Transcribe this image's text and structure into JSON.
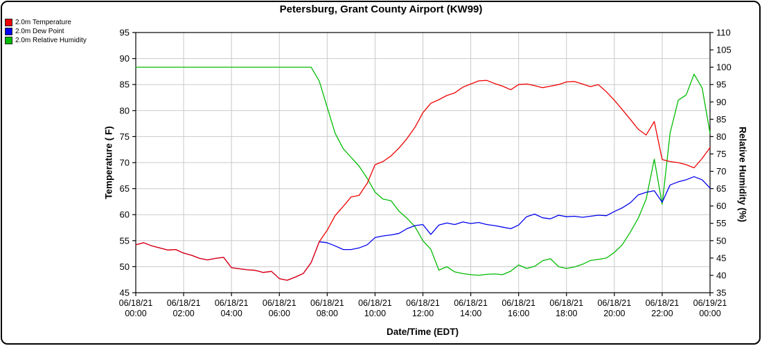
{
  "title": "Petersburg, Grant County Airport (KW99)",
  "legend": {
    "items": [
      {
        "label": "2.0m Temperature",
        "color": "#ee0000"
      },
      {
        "label": "2.0m Dew Point",
        "color": "#0000ee"
      },
      {
        "label": "2.0m Relative Humidity",
        "color": "#00bb00"
      }
    ]
  },
  "chart_data": {
    "type": "line",
    "title": "Petersburg, Grant County Airport (KW99)",
    "xlabel": "Date/Time (EDT)",
    "ylabel_left": "Temperature ( F)",
    "ylabel_right": "Relative Humidity (%)",
    "xlim_hours": [
      0,
      24
    ],
    "ylim_left": [
      45,
      95
    ],
    "ylim_right": [
      35,
      110
    ],
    "grid": true,
    "grid_color": "#c9c9c9",
    "legend_position": "top-left",
    "yticks_left": [
      45,
      50,
      55,
      60,
      65,
      70,
      75,
      80,
      85,
      90,
      95
    ],
    "yticks_right": [
      35,
      40,
      45,
      50,
      55,
      60,
      65,
      70,
      75,
      80,
      85,
      90,
      95,
      100,
      105,
      110
    ],
    "x_ticks": [
      {
        "hour": 0,
        "date": "06/18/21",
        "time": "00:00"
      },
      {
        "hour": 2,
        "date": "06/18/21",
        "time": "02:00"
      },
      {
        "hour": 4,
        "date": "06/18/21",
        "time": "04:00"
      },
      {
        "hour": 6,
        "date": "06/18/21",
        "time": "06:00"
      },
      {
        "hour": 8,
        "date": "06/18/21",
        "time": "08:00"
      },
      {
        "hour": 10,
        "date": "06/18/21",
        "time": "10:00"
      },
      {
        "hour": 12,
        "date": "06/18/21",
        "time": "12:00"
      },
      {
        "hour": 14,
        "date": "06/18/21",
        "time": "14:00"
      },
      {
        "hour": 16,
        "date": "06/18/21",
        "time": "16:00"
      },
      {
        "hour": 18,
        "date": "06/18/21",
        "time": "18:00"
      },
      {
        "hour": 20,
        "date": "06/18/21",
        "time": "20:00"
      },
      {
        "hour": 22,
        "date": "06/18/21",
        "time": "22:00"
      },
      {
        "hour": 24,
        "date": "06/19/21",
        "time": "00:00"
      }
    ],
    "x_hours": [
      0,
      0.33,
      0.67,
      1,
      1.33,
      1.67,
      2,
      2.33,
      2.67,
      3,
      3.33,
      3.67,
      4,
      4.33,
      4.67,
      5,
      5.33,
      5.67,
      6,
      6.33,
      6.67,
      7,
      7.33,
      7.67,
      8,
      8.33,
      8.67,
      9,
      9.33,
      9.67,
      10,
      10.33,
      10.67,
      11,
      11.33,
      11.67,
      12,
      12.33,
      12.67,
      13,
      13.33,
      13.67,
      14,
      14.33,
      14.67,
      15,
      15.33,
      15.67,
      16,
      16.33,
      16.67,
      17,
      17.33,
      17.67,
      18,
      18.33,
      18.67,
      19,
      19.33,
      19.67,
      20,
      20.33,
      20.67,
      21,
      21.33,
      21.67,
      22,
      22.33,
      22.67,
      23,
      23.33,
      23.67,
      24
    ],
    "series": [
      {
        "name": "2.0m Temperature",
        "axis": "left",
        "color": "#ee0000",
        "values": [
          54.2,
          54.6,
          54.0,
          53.6,
          53.2,
          53.3,
          52.6,
          52.2,
          51.6,
          51.3,
          51.6,
          51.8,
          49.8,
          49.6,
          49.4,
          49.3,
          48.9,
          49.1,
          47.7,
          47.4,
          48.0,
          48.7,
          50.8,
          54.8,
          57.0,
          59.8,
          61.6,
          63.4,
          63.7,
          66.0,
          69.6,
          70.2,
          71.3,
          72.8,
          74.6,
          76.8,
          79.6,
          81.4,
          82.1,
          82.9,
          83.4,
          84.5,
          85.1,
          85.7,
          85.8,
          85.2,
          84.7,
          84.0,
          85.0,
          85.1,
          84.8,
          84.4,
          84.7,
          85.0,
          85.5,
          85.6,
          85.1,
          84.6,
          85.0,
          83.6,
          82.0,
          80.2,
          78.3,
          76.4,
          75.3,
          77.9,
          70.6,
          70.2,
          70.0,
          69.6,
          69.0,
          70.8,
          72.9
        ]
      },
      {
        "name": "2.0m Dew Point",
        "axis": "left",
        "color": "#0000ee",
        "values": [
          54.2,
          54.6,
          54.0,
          53.6,
          53.2,
          53.3,
          52.6,
          52.2,
          51.6,
          51.3,
          51.6,
          51.8,
          49.8,
          49.6,
          49.4,
          49.3,
          48.9,
          49.1,
          47.7,
          47.4,
          48.0,
          48.7,
          50.8,
          54.8,
          54.6,
          54.0,
          53.3,
          53.3,
          53.6,
          54.2,
          55.6,
          55.9,
          56.1,
          56.4,
          57.3,
          57.9,
          58.1,
          56.2,
          58.0,
          58.4,
          58.1,
          58.6,
          58.3,
          58.5,
          58.1,
          57.9,
          57.6,
          57.3,
          58.0,
          59.6,
          60.1,
          59.4,
          59.2,
          59.9,
          59.6,
          59.7,
          59.5,
          59.7,
          59.9,
          59.8,
          60.6,
          61.3,
          62.3,
          63.8,
          64.3,
          64.6,
          62.4,
          65.7,
          66.3,
          66.7,
          67.3,
          66.7,
          65.1
        ]
      },
      {
        "name": "2.0m Relative Humidity",
        "axis": "right",
        "color": "#00bb00",
        "values": [
          100,
          100,
          100,
          100,
          100,
          100,
          100,
          100,
          100,
          100,
          100,
          100,
          100,
          100,
          100,
          100,
          100,
          100,
          100,
          100,
          100,
          100,
          100,
          96,
          88.5,
          81,
          76.5,
          74,
          71.5,
          68,
          64,
          62,
          61.5,
          58.5,
          56.5,
          54,
          50,
          47.5,
          41.5,
          42.5,
          41,
          40.5,
          40.2,
          40,
          40.3,
          40.4,
          40.2,
          41.2,
          43,
          42,
          42.6,
          44.2,
          44.8,
          42.5,
          42,
          42.4,
          43.2,
          44.3,
          44.6,
          45,
          46.6,
          48.8,
          52.5,
          56.5,
          62,
          73.5,
          60.5,
          81,
          90.5,
          92,
          98,
          94,
          81
        ]
      }
    ]
  }
}
